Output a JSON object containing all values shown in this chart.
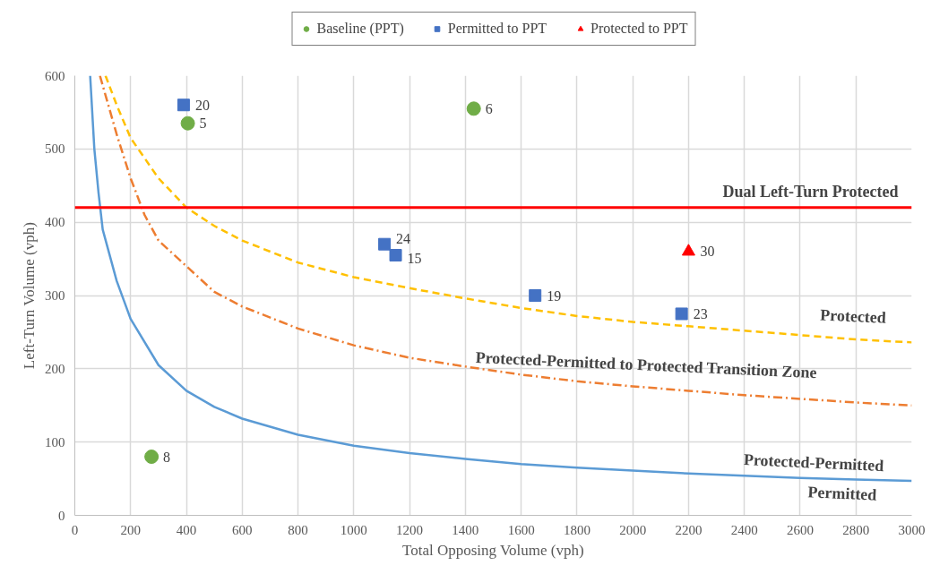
{
  "chart_data": {
    "type": "scatter",
    "xlabel": "Total Opposing Volume (vph)",
    "ylabel": "Left-Turn Volume (vph)",
    "xlim": [
      0,
      3000
    ],
    "ylim": [
      0,
      600
    ],
    "xticks": [
      0,
      200,
      400,
      600,
      800,
      1000,
      1200,
      1400,
      1600,
      1800,
      2000,
      2200,
      2400,
      2600,
      2800,
      3000
    ],
    "yticks": [
      0,
      100,
      200,
      300,
      400,
      500,
      600
    ],
    "grid": true,
    "legend": "top",
    "series": [
      {
        "name": "Baseline (PPT)",
        "marker": "circle",
        "color": "#70ad47",
        "x": [
          405,
          1430,
          275
        ],
        "values": [
          535,
          555,
          80
        ]
      },
      {
        "name": "Permitted to PPT",
        "marker": "square",
        "color": "#4472c4",
        "x": [
          390,
          1110,
          1150,
          1650,
          2175
        ],
        "values": [
          560,
          370,
          355,
          300,
          275
        ]
      },
      {
        "name": "Protected to PPT",
        "marker": "triangle",
        "color": "#ff0000",
        "x": [
          2200
        ],
        "values": [
          360
        ]
      },
      {
        "type": "line",
        "line_style": "solid",
        "color": "#5b9bd5",
        "x": [
          55,
          70,
          85,
          100,
          150,
          200,
          300,
          400,
          500,
          600,
          800,
          1000,
          1200,
          1400,
          1600,
          1800,
          2000,
          2200,
          2400,
          2600,
          2800,
          3000
        ],
        "values": [
          600,
          500,
          440,
          390,
          320,
          268,
          205,
          170,
          148,
          132,
          110,
          95,
          85,
          77,
          70,
          65,
          61,
          57,
          54,
          51,
          49,
          47
        ]
      },
      {
        "type": "line",
        "line_style": "dashdot",
        "color": "#ed7d31",
        "x": [
          90,
          150,
          200,
          250,
          300,
          400,
          500,
          600,
          800,
          1000,
          1200,
          1400,
          1600,
          1800,
          2000,
          2200,
          2400,
          2600,
          2800,
          3000
        ],
        "values": [
          600,
          520,
          460,
          410,
          375,
          340,
          305,
          285,
          255,
          232,
          215,
          203,
          192,
          183,
          176,
          170,
          164,
          159,
          154,
          150
        ]
      },
      {
        "type": "line",
        "line_style": "dashed",
        "color": "#ffc000",
        "x": [
          110,
          150,
          200,
          300,
          400,
          500,
          600,
          800,
          1000,
          1200,
          1400,
          1600,
          1800,
          2000,
          2200,
          2400,
          2600,
          2800,
          3000
        ],
        "values": [
          600,
          560,
          515,
          460,
          420,
          395,
          375,
          345,
          325,
          310,
          296,
          283,
          272,
          264,
          258,
          252,
          246,
          240,
          236
        ]
      }
    ],
    "ref_lines": [
      {
        "axis": "y",
        "value": 420,
        "label": "Dual Left-Turn Protected",
        "color": "#ff0000",
        "line_style": "solid"
      }
    ],
    "annotations": [
      {
        "text": "5",
        "x": 405,
        "y": 535
      },
      {
        "text": "6",
        "x": 1430,
        "y": 555
      },
      {
        "text": "8",
        "x": 275,
        "y": 80
      },
      {
        "text": "20",
        "x": 390,
        "y": 560
      },
      {
        "text": "24",
        "x": 1110,
        "y": 370
      },
      {
        "text": "15",
        "x": 1150,
        "y": 355
      },
      {
        "text": "19",
        "x": 1650,
        "y": 300
      },
      {
        "text": "23",
        "x": 2175,
        "y": 275
      },
      {
        "text": "30",
        "x": 2200,
        "y": 360
      },
      "Protected",
      "Protected-Permitted to Protected Transition Zone",
      "Protected-Permitted",
      "Permitted"
    ]
  }
}
